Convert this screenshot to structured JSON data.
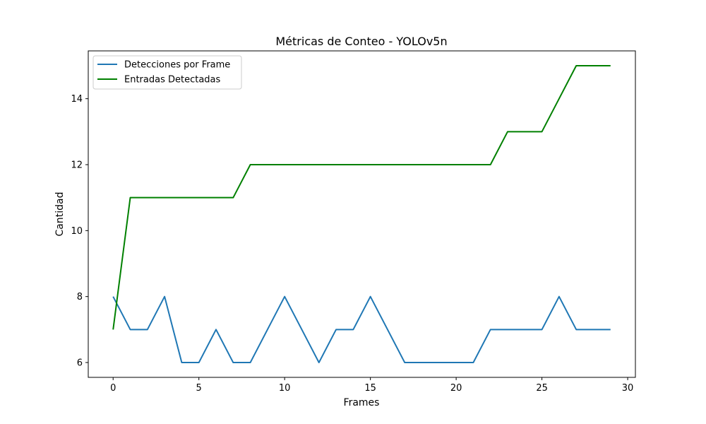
{
  "chart_data": {
    "type": "line",
    "title": "Métricas de Conteo - YOLOv5n",
    "xlabel": "Frames",
    "ylabel": "Cantidad",
    "xlim": [
      -1.45,
      30.45
    ],
    "ylim": [
      5.55,
      15.45
    ],
    "xticks": [
      0,
      5,
      10,
      15,
      20,
      25,
      30
    ],
    "yticks": [
      6,
      8,
      10,
      12,
      14
    ],
    "grid": false,
    "legend_position": "upper-left",
    "x": [
      0,
      1,
      2,
      3,
      4,
      5,
      6,
      7,
      8,
      9,
      10,
      11,
      12,
      13,
      14,
      15,
      16,
      17,
      18,
      19,
      20,
      21,
      22,
      23,
      24,
      25,
      26,
      27,
      28,
      29
    ],
    "series": [
      {
        "name": "Detecciones por Frame",
        "color": "#1f77b4",
        "values": [
          8,
          7,
          7,
          8,
          6,
          6,
          7,
          6,
          6,
          7,
          8,
          7,
          6,
          7,
          7,
          8,
          7,
          6,
          6,
          6,
          6,
          6,
          7,
          7,
          7,
          7,
          8,
          7,
          7,
          7
        ]
      },
      {
        "name": "Entradas Detectadas",
        "color": "#008000",
        "values": [
          7,
          11,
          11,
          11,
          11,
          11,
          11,
          11,
          12,
          12,
          12,
          12,
          12,
          12,
          12,
          12,
          12,
          12,
          12,
          12,
          12,
          12,
          12,
          13,
          13,
          13,
          14,
          15,
          15,
          15
        ]
      }
    ]
  }
}
